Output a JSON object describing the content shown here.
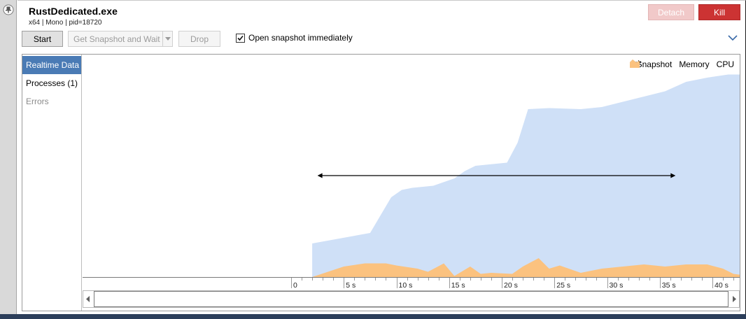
{
  "app": {
    "title": "RustDedicated.exe",
    "subtitle": "x64 | Mono | pid=18720"
  },
  "toolbar": {
    "detach_label": "Detach",
    "kill_label": "Kill",
    "start_label": "Start",
    "get_snapshot_label": "Get Snapshot and Wait",
    "drop_label": "Drop",
    "open_snapshot_label": "Open snapshot immediately",
    "open_snapshot_checked": true
  },
  "sidebar": {
    "items": [
      {
        "label": "Realtime Data",
        "state": "active"
      },
      {
        "label": "Processes (1)",
        "state": "normal"
      },
      {
        "label": "Errors",
        "state": "disabled"
      }
    ]
  },
  "legend": {
    "snapshot_label": "Snapshot",
    "memory_label": "Memory",
    "cpu_label": "CPU"
  },
  "colors": {
    "memory": "#cfe0f7",
    "cpu": "#fbc27f",
    "kill": "#cc3333",
    "detach": "#f1c9c9",
    "active_tab": "#4a7bb5"
  },
  "chart_data": {
    "type": "area",
    "x_unit": "s",
    "xlim": [
      0,
      44.5
    ],
    "x_ticks": [
      "0",
      "5 s",
      "10 s",
      "15 s",
      "20 s",
      "25 s",
      "30 s",
      "35 s",
      "40 s"
    ],
    "x_tick_values": [
      0,
      5,
      10,
      15,
      20,
      25,
      30,
      35,
      40
    ],
    "memory_ylim": [
      0,
      100
    ],
    "series": [
      {
        "name": "Memory",
        "x": [
          2,
          7.5,
          9.5,
          10.5,
          11.5,
          13.5,
          15.5,
          16.5,
          17.5,
          20.5,
          21.5,
          22.5,
          24.5,
          27.5,
          29.5,
          31.5,
          33.5,
          35.5,
          37.5,
          39.5,
          41.5,
          44.5
        ],
        "values": [
          16.0,
          21.0,
          38.0,
          41.5,
          42.5,
          43.5,
          47.0,
          50.5,
          53.0,
          54.5,
          64.0,
          80.0,
          80.5,
          80.0,
          81.0,
          83.5,
          86.0,
          88.5,
          93.0,
          95.0,
          96.5,
          96.5
        ]
      },
      {
        "name": "CPU",
        "x": [
          2,
          3.5,
          5,
          7,
          9,
          10,
          12,
          13,
          14.5,
          15.5,
          17,
          18,
          19,
          21,
          22,
          23.5,
          24.5,
          25.5,
          27.5,
          29.5,
          31.5,
          33.5,
          35.5,
          37.5,
          39.5,
          41,
          42,
          44.5
        ],
        "values": [
          0,
          2.5,
          5.0,
          6.5,
          6.5,
          5.5,
          4.0,
          2.5,
          6.5,
          0.5,
          5.0,
          1.5,
          2.0,
          1.5,
          5.0,
          9.0,
          4.0,
          5.5,
          2.0,
          4.0,
          5.0,
          6.0,
          5.0,
          6.0,
          6.0,
          4.0,
          1.5,
          0
        ]
      }
    ],
    "snapshot_range": [
      2.5,
      36.5
    ]
  }
}
